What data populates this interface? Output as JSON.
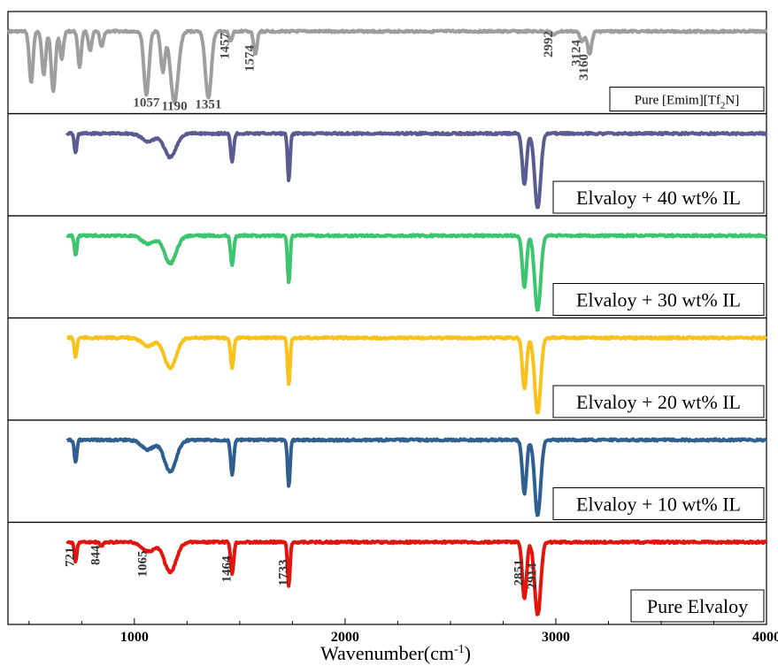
{
  "chart_data": {
    "type": "line",
    "xlabel": "Wavenumber(cm",
    "xlabel_sup": "-1",
    "xlabel_close": ")",
    "xlim": [
      400,
      4000
    ],
    "xticks": [
      1000,
      2000,
      3000,
      4000
    ],
    "xtick_labels": [
      "1000",
      "2000",
      "3000",
      "4000"
    ],
    "stacked": true,
    "panels": [
      {
        "name": "Pure [Emim][Tf2N]",
        "label_main": "Pure [Emim][Tf",
        "label_sub": "2",
        "label_end": "N]",
        "color": "#9e9e9e",
        "baseline": 0.05,
        "peaks": [
          {
            "x": 510,
            "depth": 0.65,
            "width": 9
          },
          {
            "x": 570,
            "depth": 0.55,
            "width": 9
          },
          {
            "x": 615,
            "depth": 0.75,
            "width": 10
          },
          {
            "x": 655,
            "depth": 0.35,
            "width": 8
          },
          {
            "x": 740,
            "depth": 0.45,
            "width": 8
          },
          {
            "x": 790,
            "depth": 0.25,
            "width": 8
          },
          {
            "x": 845,
            "depth": 0.2,
            "width": 8
          },
          {
            "x": 1057,
            "depth": 0.8,
            "width": 12
          },
          {
            "x": 1135,
            "depth": 0.5,
            "width": 10
          },
          {
            "x": 1190,
            "depth": 0.9,
            "width": 18
          },
          {
            "x": 1351,
            "depth": 0.85,
            "width": 14
          },
          {
            "x": 1457,
            "depth": 0.12,
            "width": 8
          },
          {
            "x": 1574,
            "depth": 0.3,
            "width": 8
          },
          {
            "x": 2992,
            "depth": 0.05,
            "width": 10
          },
          {
            "x": 3124,
            "depth": 0.12,
            "width": 10
          },
          {
            "x": 3160,
            "depth": 0.28,
            "width": 10
          }
        ],
        "annotations": [
          {
            "x": 1057,
            "text": "1057",
            "orient": "h"
          },
          {
            "x": 1190,
            "text": "1190",
            "orient": "h"
          },
          {
            "x": 1351,
            "text": "1351",
            "orient": "h"
          },
          {
            "x": 1457,
            "text": "1457",
            "orient": "v"
          },
          {
            "x": 1574,
            "text": "1574",
            "orient": "v"
          },
          {
            "x": 2992,
            "text": "2992",
            "orient": "v"
          },
          {
            "x": 3124,
            "text": "3124",
            "orient": "v"
          },
          {
            "x": 3160,
            "text": "3160",
            "orient": "v"
          }
        ]
      },
      {
        "name": "Elvaloy + 40 wt% IL",
        "color": "#5b5b93",
        "baseline": 0.05,
        "peaks": [
          {
            "x": 721,
            "depth": 0.25,
            "width": 6
          },
          {
            "x": 1065,
            "depth": 0.1,
            "width": 30
          },
          {
            "x": 1170,
            "depth": 0.3,
            "width": 28
          },
          {
            "x": 1464,
            "depth": 0.35,
            "width": 7
          },
          {
            "x": 1733,
            "depth": 0.6,
            "width": 6
          },
          {
            "x": 2851,
            "depth": 0.65,
            "width": 10
          },
          {
            "x": 2914,
            "depth": 0.95,
            "width": 14
          }
        ]
      },
      {
        "name": "Elvaloy + 30 wt% IL",
        "color": "#3cc46e",
        "baseline": 0.05,
        "peaks": [
          {
            "x": 721,
            "depth": 0.25,
            "width": 6
          },
          {
            "x": 1065,
            "depth": 0.1,
            "width": 30
          },
          {
            "x": 1170,
            "depth": 0.35,
            "width": 28
          },
          {
            "x": 1464,
            "depth": 0.38,
            "width": 7
          },
          {
            "x": 1733,
            "depth": 0.6,
            "width": 6
          },
          {
            "x": 2851,
            "depth": 0.65,
            "width": 10
          },
          {
            "x": 2914,
            "depth": 0.95,
            "width": 14
          }
        ]
      },
      {
        "name": "Elvaloy + 20 wt% IL",
        "color": "#f9c21b",
        "baseline": 0.05,
        "peaks": [
          {
            "x": 721,
            "depth": 0.25,
            "width": 6
          },
          {
            "x": 1065,
            "depth": 0.1,
            "width": 30
          },
          {
            "x": 1170,
            "depth": 0.38,
            "width": 28
          },
          {
            "x": 1464,
            "depth": 0.38,
            "width": 7
          },
          {
            "x": 1733,
            "depth": 0.6,
            "width": 6
          },
          {
            "x": 2851,
            "depth": 0.65,
            "width": 10
          },
          {
            "x": 2914,
            "depth": 0.95,
            "width": 14
          }
        ]
      },
      {
        "name": "Elvaloy + 10 wt% IL",
        "color": "#2f5f91",
        "baseline": 0.05,
        "peaks": [
          {
            "x": 721,
            "depth": 0.28,
            "width": 6
          },
          {
            "x": 1065,
            "depth": 0.12,
            "width": 30
          },
          {
            "x": 1170,
            "depth": 0.4,
            "width": 28
          },
          {
            "x": 1464,
            "depth": 0.45,
            "width": 7
          },
          {
            "x": 1733,
            "depth": 0.6,
            "width": 6
          },
          {
            "x": 2851,
            "depth": 0.68,
            "width": 10
          },
          {
            "x": 2914,
            "depth": 0.95,
            "width": 14
          }
        ]
      },
      {
        "name": "Pure Elvaloy",
        "color": "#e3140c",
        "baseline": 0.05,
        "peaks": [
          {
            "x": 721,
            "depth": 0.25,
            "width": 6
          },
          {
            "x": 844,
            "depth": 0.05,
            "width": 8
          },
          {
            "x": 1065,
            "depth": 0.12,
            "width": 30
          },
          {
            "x": 1170,
            "depth": 0.38,
            "width": 28
          },
          {
            "x": 1464,
            "depth": 0.4,
            "width": 7
          },
          {
            "x": 1733,
            "depth": 0.55,
            "width": 6
          },
          {
            "x": 2851,
            "depth": 0.72,
            "width": 10
          },
          {
            "x": 2914,
            "depth": 0.93,
            "width": 14
          }
        ],
        "annotations": [
          {
            "x": 721,
            "text": "721",
            "orient": "v"
          },
          {
            "x": 844,
            "text": "844",
            "orient": "v"
          },
          {
            "x": 1065,
            "text": "1065",
            "orient": "v"
          },
          {
            "x": 1464,
            "text": "1464",
            "orient": "v"
          },
          {
            "x": 1733,
            "text": "1733",
            "orient": "v"
          },
          {
            "x": 2851,
            "text": "2851",
            "orient": "v"
          },
          {
            "x": 2914,
            "text": "2914",
            "orient": "v"
          }
        ]
      }
    ]
  }
}
